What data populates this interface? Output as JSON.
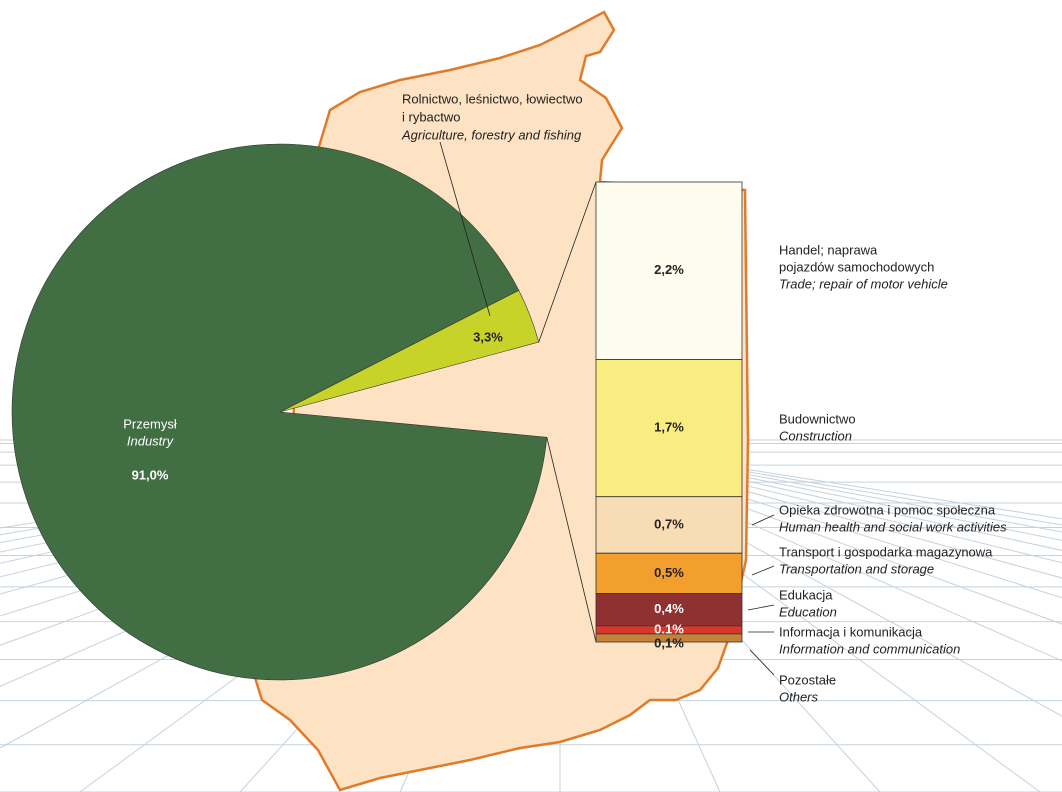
{
  "chart_data": {
    "type": "pie-of-bar",
    "pie": [
      {
        "name": [
          "Przemysł"
        ],
        "name_en": "Industry",
        "value": 91.0,
        "value_label": "91,0%",
        "color": "#426e44"
      },
      {
        "name": [
          "Rolnictwo, leśnictwo, łowiectwo",
          "i rybactwo"
        ],
        "name_en": "Agriculture, forestry and fishing",
        "value": 3.3,
        "value_label": "3,3%",
        "color": "#c8d32a"
      }
    ],
    "bar": [
      {
        "name": [
          "Handel; naprawa",
          "pojazdów samochodowych"
        ],
        "name_en": "Trade; repair of motor vehicle",
        "value": 2.2,
        "value_label": "2,2%",
        "color": "#fdfcee"
      },
      {
        "name": [
          "Budownictwo"
        ],
        "name_en": "Construction",
        "value": 1.7,
        "value_label": "1,7%",
        "color": "#f9ec80"
      },
      {
        "name": [
          "Opieka zdrowotna i pomoc społeczna"
        ],
        "name_en": "Human health and social work activities",
        "value": 0.7,
        "value_label": "0,7%",
        "color": "#f8dcb4"
      },
      {
        "name": [
          "Transport i gospodarka magazynowa"
        ],
        "name_en": "Transportation and storage",
        "value": 0.5,
        "value_label": "0,5%",
        "color": "#f29f2e"
      },
      {
        "name": [
          "Edukacja"
        ],
        "name_en": "Education",
        "value": 0.4,
        "value_label": "0,4%",
        "color": "#8e3130"
      },
      {
        "name": [
          "Informacja i komunikacja"
        ],
        "name_en": "Information and communication",
        "value": 0.1,
        "value_label": "0,1%",
        "color": "#d9362c"
      },
      {
        "name": [
          "Pozostałe"
        ],
        "name_en": "Others",
        "value": 0.1,
        "value_label": "0,1%",
        "color": "#c7823a"
      }
    ]
  }
}
